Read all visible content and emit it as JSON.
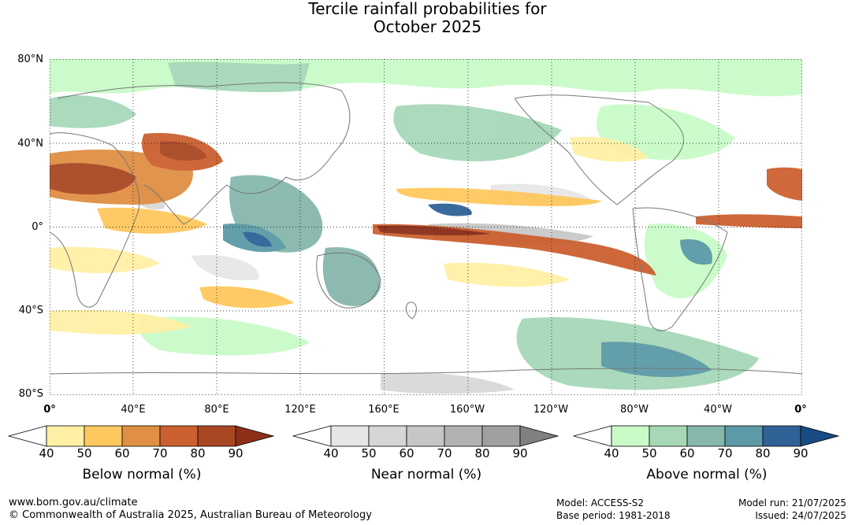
{
  "title": {
    "line1": "Tercile rainfall probabilities for",
    "line2": "October 2025"
  },
  "map": {
    "lat_labels": [
      "80°N",
      "40°N",
      "0°",
      "40°S",
      "80°S"
    ],
    "lon_labels": [
      "0°",
      "40°E",
      "80°E",
      "120°E",
      "160°E",
      "160°W",
      "120°W",
      "80°W",
      "40°W",
      "0°"
    ]
  },
  "colorbars": [
    {
      "name": "below",
      "title": "Below normal (%)",
      "ticks": [
        "40",
        "50",
        "60",
        "70",
        "80",
        "90"
      ],
      "colors": [
        "#fff0a6",
        "#ffc85e",
        "#e08f44",
        "#cc6030",
        "#a94723",
        "#8c2f19"
      ]
    },
    {
      "name": "near",
      "title": "Near normal (%)",
      "ticks": [
        "40",
        "50",
        "60",
        "70",
        "80",
        "90"
      ],
      "colors": [
        "#e6e6e6",
        "#d6d6d6",
        "#c6c6c6",
        "#b2b2b2",
        "#a0a0a0",
        "#808080"
      ]
    },
    {
      "name": "above",
      "title": "Above normal (%)",
      "ticks": [
        "40",
        "50",
        "60",
        "70",
        "80",
        "90"
      ],
      "colors": [
        "#c9fbc8",
        "#a6d8b8",
        "#86b7ad",
        "#5b9aa6",
        "#2f6297",
        "#184b84"
      ]
    }
  ],
  "footer": {
    "website": "www.bom.gov.au/climate",
    "copyright": "© Commonwealth of Australia 2025, Australian Bureau of Meteorology",
    "model": "Model: ACCESS-S2",
    "base_period": "Base period: 1981-2018",
    "model_run": "Model run: 21/07/2025",
    "issued": "Issued: 24/07/2025"
  }
}
